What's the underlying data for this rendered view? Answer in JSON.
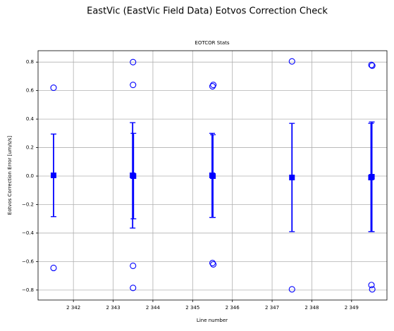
{
  "chart_data": {
    "type": "errorbar",
    "suptitle": "EastVic (EastVic Field Data) Eotvos Correction Check",
    "title": "EOTCOR Stats",
    "xlabel": "Line number",
    "ylabel": "Eotvos Correction Error [um/s/s]",
    "color": "#0000ff",
    "grid": true,
    "xlim": [
      2341.11,
      2349.89
    ],
    "ylim": [
      -0.87,
      0.88
    ],
    "xticks": [
      {
        "value": 2342,
        "label": "2 342"
      },
      {
        "value": 2343,
        "label": "2 343"
      },
      {
        "value": 2344,
        "label": "2 344"
      },
      {
        "value": 2345,
        "label": "2 345"
      },
      {
        "value": 2346,
        "label": "2 346"
      },
      {
        "value": 2347,
        "label": "2 347"
      },
      {
        "value": 2348,
        "label": "2 348"
      },
      {
        "value": 2349,
        "label": "2 349"
      }
    ],
    "yticks": [
      {
        "value": -0.8,
        "label": "−0.8"
      },
      {
        "value": -0.6,
        "label": "−0.6"
      },
      {
        "value": -0.4,
        "label": "−0.4"
      },
      {
        "value": -0.2,
        "label": "−0.2"
      },
      {
        "value": 0,
        "label": "0.0"
      },
      0.2,
      0.4,
      0.6,
      0.8
    ],
    "means": {
      "x": [
        2341.5,
        2343.49,
        2343.51,
        2345.49,
        2345.51,
        2347.5,
        2349.49,
        2349.51
      ],
      "values": [
        0.005,
        0.005,
        0.0,
        0.005,
        0.0,
        -0.01,
        -0.01,
        -0.005
      ],
      "errors": [
        0.29,
        0.37,
        0.3,
        0.295,
        0.29,
        0.38,
        0.38,
        0.385
      ]
    },
    "outliers": {
      "x": [
        2341.5,
        2341.5,
        2343.5,
        2343.5,
        2343.5,
        2343.5,
        2345.5,
        2345.52,
        2345.5,
        2345.52,
        2347.5,
        2347.5,
        2349.5,
        2349.52,
        2349.5,
        2349.52
      ],
      "values": [
        0.62,
        -0.645,
        0.8,
        0.64,
        -0.63,
        -0.785,
        0.63,
        0.64,
        -0.61,
        -0.62,
        0.805,
        -0.795,
        0.78,
        0.775,
        -0.765,
        -0.795
      ]
    }
  }
}
